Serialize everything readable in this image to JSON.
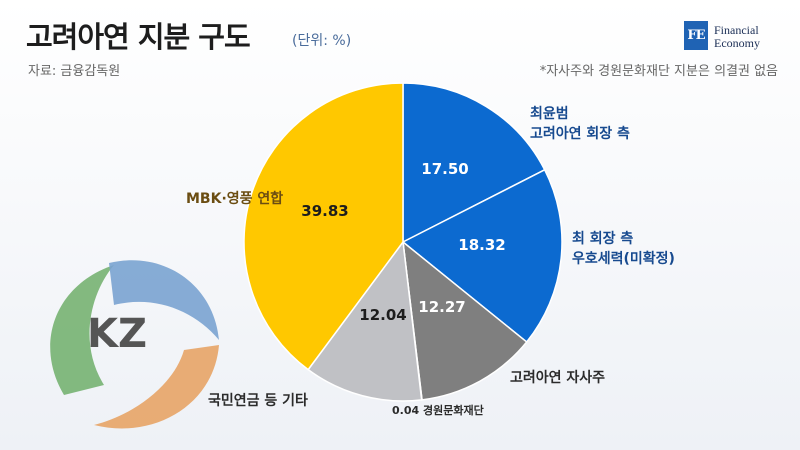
{
  "header": {
    "title": "고려아연 지분 구도",
    "unit": "(단위: %)",
    "source": "자료: 금융감독원",
    "note": "*자사주와 경원문화재단 지분은 의결권 없음"
  },
  "logo": {
    "mark": "FE",
    "line1": "Financial",
    "line2": "Economy"
  },
  "watermark": {
    "text": "KZ"
  },
  "colors": {
    "blue": "#0c6ad0",
    "gray_dark": "#7f7f7f",
    "gray_light": "#c0c1c5",
    "yellow": "#ffc800"
  },
  "chart_data": {
    "type": "pie",
    "title": "고려아연 지분 구도",
    "unit": "%",
    "slices": [
      {
        "label": "최윤범 고려아연 회장 측",
        "label_lines": [
          "최윤범",
          "고려아연 회장 측"
        ],
        "value": 17.5,
        "value_label": "17.50",
        "color": "#0c6ad0"
      },
      {
        "label": "최 회장 측 우호세력(미확정)",
        "label_lines": [
          "최 회장 측",
          "우호세력(미확정)"
        ],
        "value": 18.32,
        "value_label": "18.32",
        "color": "#0c6ad0"
      },
      {
        "label": "고려아연 자사주",
        "label_lines": [
          "고려아연 자사주"
        ],
        "value": 12.27,
        "value_label": "12.27",
        "color": "#7f7f7f"
      },
      {
        "label": "경원문화재단",
        "label_lines": [
          "0.04 경원문화재단"
        ],
        "value": 0.04,
        "value_label": "",
        "color": "#7f7f7f"
      },
      {
        "label": "국민연금 등 기타",
        "label_lines": [
          "국민연금 등 기타"
        ],
        "value": 12.04,
        "value_label": "12.04",
        "color": "#c0c1c5"
      },
      {
        "label": "MBK·영풍 연합",
        "label_lines": [
          "MBK·영풍 연합"
        ],
        "value": 39.83,
        "value_label": "39.83",
        "color": "#ffc800"
      }
    ]
  }
}
